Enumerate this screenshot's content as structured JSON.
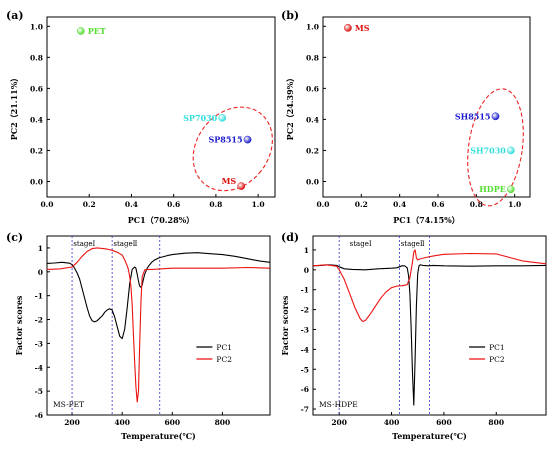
{
  "chart_data": [
    {
      "panel": "(a)",
      "type": "scatter",
      "xlabel": "PC1（70.28%）",
      "ylabel": "PC2（21.11%）",
      "xlim": [
        0.0,
        1.08
      ],
      "ylim": [
        -0.1,
        1.06
      ],
      "xticks": [
        "0.0",
        "0.2",
        "0.4",
        "0.6",
        "0.8",
        "1.0"
      ],
      "yticks": [
        "0.0",
        "0.2",
        "0.4",
        "0.6",
        "0.8",
        "1.0"
      ],
      "points": [
        {
          "label": "PET",
          "x": 0.16,
          "y": 0.97,
          "color": "#55dd33"
        },
        {
          "label": "SP7030",
          "x": 0.83,
          "y": 0.41,
          "color": "#33dddd"
        },
        {
          "label": "SP8515",
          "x": 0.95,
          "y": 0.27,
          "color": "#1a1acc"
        },
        {
          "label": "MS",
          "x": 0.92,
          "y": -0.03,
          "color": "#dd1111"
        }
      ],
      "ellipse": {
        "cx": 0.88,
        "cy": 0.21,
        "rx": 0.17,
        "ry": 0.29,
        "angle": 38
      }
    },
    {
      "panel": "(b)",
      "type": "scatter",
      "xlabel": "PC1（74.15%）",
      "ylabel": "PC2（24.39%）",
      "xlim": [
        0.0,
        1.08
      ],
      "ylim": [
        -0.1,
        1.06
      ],
      "xticks": [
        "0.0",
        "0.2",
        "0.4",
        "0.6",
        "0.8",
        "1.0"
      ],
      "yticks": [
        "0.0",
        "0.2",
        "0.4",
        "0.6",
        "0.8",
        "1.0"
      ],
      "points": [
        {
          "label": "MS",
          "x": 0.13,
          "y": 0.99,
          "color": "#dd1111"
        },
        {
          "label": "SH8515",
          "x": 0.9,
          "y": 0.42,
          "color": "#1a1acc"
        },
        {
          "label": "SH7030",
          "x": 0.98,
          "y": 0.2,
          "color": "#33dddd"
        },
        {
          "label": "HDPE",
          "x": 0.98,
          "y": -0.05,
          "color": "#55dd33"
        }
      ],
      "ellipse": {
        "cx": 0.9,
        "cy": 0.22,
        "rx": 0.14,
        "ry": 0.38,
        "angle": 8
      }
    },
    {
      "panel": "(c)",
      "type": "line",
      "note": "MS-PET",
      "xlabel": "Temperature(℃)",
      "ylabel": "Factor scores",
      "xlim": [
        100,
        990
      ],
      "ylim": [
        -6.0,
        1.5
      ],
      "xticks": [
        200,
        400,
        600,
        800
      ],
      "yticks": [
        1,
        0,
        -1,
        -2,
        -3,
        -4,
        -5,
        -6
      ],
      "stage_lines": [
        200,
        360,
        550
      ],
      "stages": [
        {
          "label": "stageⅠ",
          "x": 205
        },
        {
          "label": "stageⅡ",
          "x": 365
        }
      ],
      "legend": [
        "PC1",
        "PC2"
      ],
      "series": [
        {
          "name": "PC1",
          "color": "#000000",
          "x": [
            100,
            130,
            160,
            190,
            200,
            210,
            220,
            230,
            240,
            250,
            260,
            270,
            280,
            290,
            300,
            310,
            320,
            330,
            340,
            350,
            360,
            370,
            380,
            390,
            400,
            410,
            420,
            430,
            440,
            450,
            455,
            460,
            465,
            470,
            475,
            480,
            485,
            490,
            500,
            510,
            520,
            530,
            540,
            550,
            560,
            580,
            600,
            650,
            700,
            750,
            800,
            850,
            900,
            950,
            990
          ],
          "y": [
            0.35,
            0.37,
            0.4,
            0.36,
            0.3,
            0.15,
            -0.05,
            -0.3,
            -0.7,
            -1.1,
            -1.5,
            -1.85,
            -2.05,
            -2.1,
            -2.05,
            -1.95,
            -1.85,
            -1.7,
            -1.6,
            -1.55,
            -1.6,
            -1.9,
            -2.3,
            -2.7,
            -2.8,
            -2.4,
            -1.5,
            -0.5,
            0.1,
            0.2,
            0.15,
            -0.1,
            -0.4,
            -0.6,
            -0.65,
            -0.55,
            -0.3,
            -0.1,
            0.15,
            0.3,
            0.42,
            0.5,
            0.55,
            0.6,
            0.62,
            0.68,
            0.72,
            0.78,
            0.8,
            0.76,
            0.72,
            0.65,
            0.55,
            0.45,
            0.4
          ]
        },
        {
          "name": "PC2",
          "color": "#ee1111",
          "x": [
            100,
            150,
            200,
            220,
            240,
            260,
            280,
            300,
            320,
            340,
            360,
            380,
            400,
            410,
            420,
            425,
            430,
            435,
            440,
            445,
            450,
            455,
            460,
            465,
            470,
            475,
            480,
            490,
            500,
            520,
            550,
            600,
            700,
            800,
            900,
            990
          ],
          "y": [
            0.1,
            0.12,
            0.2,
            0.4,
            0.65,
            0.85,
            0.97,
            1.0,
            0.98,
            0.95,
            0.9,
            0.82,
            0.7,
            0.5,
            0.25,
            0.1,
            -0.2,
            -0.6,
            -1.4,
            -2.6,
            -3.8,
            -4.8,
            -5.45,
            -5.0,
            -3.0,
            -1.2,
            -0.2,
            0.08,
            0.1,
            0.1,
            0.12,
            0.15,
            0.15,
            0.15,
            0.18,
            0.15
          ]
        }
      ]
    },
    {
      "panel": "(d)",
      "type": "line",
      "note": "MS-HDPE",
      "xlabel": "Temperature(℃)",
      "ylabel": "Factor scores",
      "xlim": [
        100,
        990
      ],
      "ylim": [
        -7.3,
        1.7
      ],
      "xticks": [
        200,
        400,
        600,
        800
      ],
      "yticks": [
        1,
        0,
        -1,
        -2,
        -3,
        -4,
        -5,
        -6,
        -7
      ],
      "stage_lines": [
        200,
        430,
        545
      ],
      "stages": [
        {
          "label": "stageⅠ",
          "x": 240
        },
        {
          "label": "stageⅡ",
          "x": 435
        }
      ],
      "legend": [
        "PC1",
        "PC2"
      ],
      "series": [
        {
          "name": "PC1",
          "color": "#000000",
          "x": [
            100,
            130,
            160,
            190,
            200,
            220,
            250,
            300,
            350,
            400,
            420,
            440,
            450,
            460,
            465,
            470,
            475,
            480,
            485,
            490,
            495,
            500,
            505,
            510,
            520,
            540,
            560,
            600,
            700,
            800,
            900,
            990
          ],
          "y": [
            0.2,
            0.22,
            0.25,
            0.22,
            0.15,
            0.05,
            0.02,
            0.0,
            0.05,
            0.08,
            0.1,
            0.2,
            0.2,
            0.1,
            -0.3,
            -1.2,
            -3.0,
            -5.2,
            -6.8,
            -4.5,
            -1.8,
            -0.2,
            0.2,
            0.25,
            0.22,
            0.2,
            0.22,
            0.2,
            0.18,
            0.2,
            0.2,
            0.22
          ]
        },
        {
          "name": "PC2",
          "color": "#ee1111",
          "x": [
            100,
            150,
            190,
            200,
            220,
            240,
            260,
            280,
            290,
            300,
            320,
            340,
            360,
            380,
            400,
            420,
            440,
            460,
            470,
            480,
            485,
            490,
            495,
            500,
            510,
            530,
            560,
            600,
            700,
            800,
            900,
            990
          ],
          "y": [
            0.2,
            0.25,
            0.18,
            0.0,
            -0.5,
            -1.2,
            -1.9,
            -2.45,
            -2.6,
            -2.55,
            -2.2,
            -1.8,
            -1.4,
            -1.1,
            -0.9,
            -0.82,
            -0.8,
            -0.75,
            -0.4,
            0.4,
            0.9,
            1.0,
            0.6,
            0.5,
            0.55,
            0.62,
            0.7,
            0.78,
            0.82,
            0.8,
            0.45,
            0.3
          ]
        }
      ]
    }
  ]
}
